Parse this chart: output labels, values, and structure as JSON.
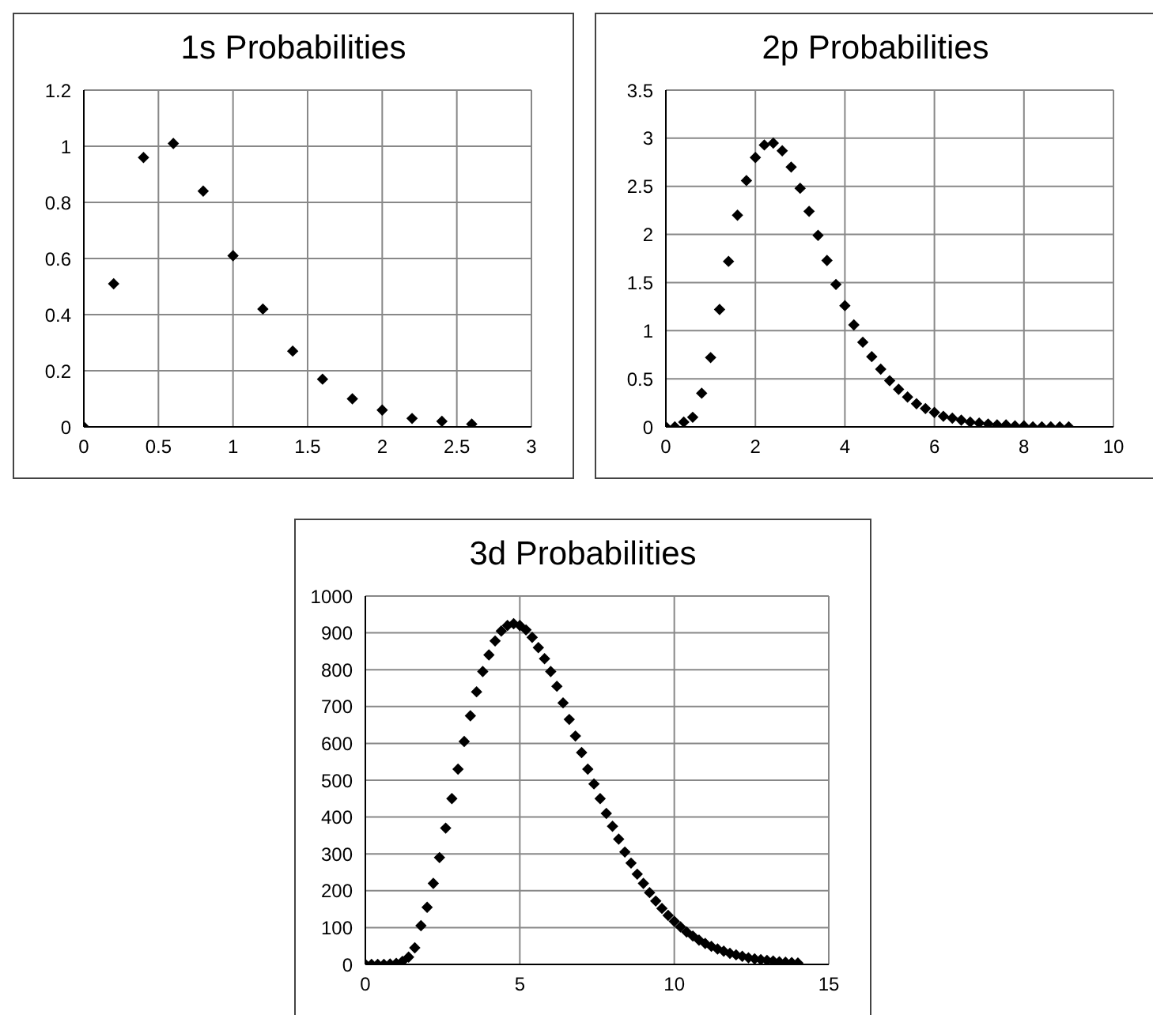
{
  "chart_data": [
    {
      "type": "scatter",
      "title": "1s Probabilities",
      "marker": "diamond",
      "color": "#000000",
      "grid": true,
      "xlim": [
        0,
        3
      ],
      "xticks": [
        0,
        0.5,
        1,
        1.5,
        2,
        2.5,
        3
      ],
      "ylim": [
        0,
        1.2
      ],
      "yticks": [
        0,
        0.2,
        0.4,
        0.6,
        0.8,
        1,
        1.2
      ],
      "x": [
        0,
        0.2,
        0.4,
        0.6,
        0.8,
        1,
        1.2,
        1.4,
        1.6,
        1.8,
        2,
        2.2,
        2.4,
        2.6
      ],
      "values": [
        0,
        0.51,
        0.96,
        1.01,
        0.84,
        0.61,
        0.42,
        0.27,
        0.17,
        0.1,
        0.06,
        0.03,
        0.02,
        0.01
      ]
    },
    {
      "type": "scatter",
      "title": "2p Probabilities",
      "marker": "diamond",
      "color": "#000000",
      "grid": true,
      "xlim": [
        0,
        10
      ],
      "xticks": [
        0,
        2,
        4,
        6,
        8,
        10
      ],
      "ylim": [
        0,
        3.5
      ],
      "yticks": [
        0,
        0.5,
        1,
        1.5,
        2,
        2.5,
        3,
        3.5
      ],
      "x": [
        0,
        0.2,
        0.4,
        0.6,
        0.8,
        1,
        1.2,
        1.4,
        1.6,
        1.8,
        2,
        2.2,
        2.4,
        2.6,
        2.8,
        3,
        3.2,
        3.4,
        3.6,
        3.8,
        4,
        4.2,
        4.4,
        4.6,
        4.8,
        5,
        5.2,
        5.4,
        5.6,
        5.8,
        6,
        6.2,
        6.4,
        6.6,
        6.8,
        7,
        7.2,
        7.4,
        7.6,
        7.8,
        8,
        8.2,
        8.4,
        8.6,
        8.8,
        9
      ],
      "values": [
        0,
        0,
        0.05,
        0.1,
        0.35,
        0.72,
        1.22,
        1.72,
        2.2,
        2.56,
        2.8,
        2.93,
        2.95,
        2.87,
        2.7,
        2.48,
        2.24,
        1.99,
        1.73,
        1.48,
        1.26,
        1.06,
        0.88,
        0.73,
        0.6,
        0.48,
        0.39,
        0.31,
        0.24,
        0.19,
        0.15,
        0.11,
        0.09,
        0.07,
        0.05,
        0.04,
        0.03,
        0.02,
        0.02,
        0.01,
        0.01,
        0,
        0,
        0,
        0,
        0
      ]
    },
    {
      "type": "scatter",
      "title": "3d Probabilities",
      "marker": "diamond",
      "color": "#000000",
      "grid": true,
      "xlim": [
        0,
        15
      ],
      "xticks": [
        0,
        5,
        10,
        15
      ],
      "ylim": [
        0,
        1000
      ],
      "yticks": [
        0,
        100,
        200,
        300,
        400,
        500,
        600,
        700,
        800,
        900,
        1000
      ],
      "x": [
        0,
        0.2,
        0.4,
        0.6,
        0.8,
        1,
        1.2,
        1.4,
        1.6,
        1.8,
        2,
        2.2,
        2.4,
        2.6,
        2.8,
        3,
        3.2,
        3.4,
        3.6,
        3.8,
        4,
        4.2,
        4.4,
        4.6,
        4.8,
        5,
        5.2,
        5.4,
        5.6,
        5.8,
        6,
        6.2,
        6.4,
        6.6,
        6.8,
        7,
        7.2,
        7.4,
        7.6,
        7.8,
        8,
        8.2,
        8.4,
        8.6,
        8.8,
        9,
        9.2,
        9.4,
        9.6,
        9.8,
        10,
        10.2,
        10.4,
        10.6,
        10.8,
        11,
        11.2,
        11.4,
        11.6,
        11.8,
        12,
        12.2,
        12.4,
        12.6,
        12.8,
        13,
        13.2,
        13.4,
        13.6,
        13.8,
        14
      ],
      "values": [
        0,
        0,
        0,
        0,
        1,
        3,
        8,
        20,
        45,
        105,
        155,
        220,
        290,
        370,
        450,
        530,
        605,
        675,
        740,
        795,
        840,
        878,
        905,
        920,
        925,
        920,
        908,
        888,
        860,
        830,
        795,
        755,
        710,
        665,
        620,
        575,
        530,
        490,
        450,
        410,
        375,
        340,
        305,
        275,
        245,
        220,
        195,
        172,
        152,
        133,
        117,
        102,
        88,
        77,
        66,
        57,
        49,
        42,
        36,
        30,
        26,
        22,
        18,
        15,
        13,
        11,
        9,
        7,
        6,
        5,
        4
      ]
    }
  ]
}
